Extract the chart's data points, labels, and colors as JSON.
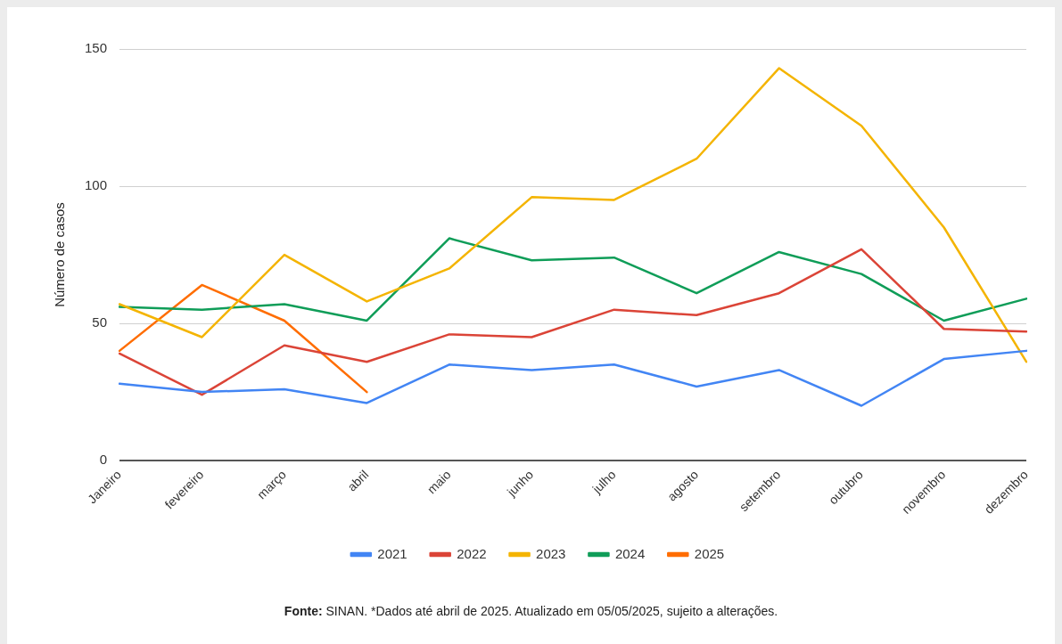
{
  "chart_data": {
    "type": "line",
    "ylabel": "Número de casos",
    "categories": [
      "Janeiro",
      "fevereiro",
      "março",
      "abril",
      "maio",
      "junho",
      "julho",
      "agosto",
      "setembro",
      "outubro",
      "novembro",
      "dezembro"
    ],
    "series": [
      {
        "name": "2021",
        "color": "#4285f4",
        "values": [
          28,
          25,
          26,
          21,
          35,
          33,
          35,
          27,
          33,
          20,
          37,
          40
        ]
      },
      {
        "name": "2022",
        "color": "#db4437",
        "values": [
          39,
          24,
          42,
          36,
          46,
          45,
          55,
          53,
          61,
          77,
          48,
          47
        ]
      },
      {
        "name": "2023",
        "color": "#f4b400",
        "values": [
          57,
          45,
          75,
          58,
          70,
          96,
          95,
          110,
          143,
          122,
          85,
          36
        ]
      },
      {
        "name": "2024",
        "color": "#0f9d58",
        "values": [
          56,
          55,
          57,
          51,
          81,
          73,
          74,
          61,
          76,
          68,
          51,
          59
        ]
      },
      {
        "name": "2025",
        "color": "#ff6d01",
        "values": [
          40,
          64,
          51,
          25,
          null,
          null,
          null,
          null,
          null,
          null,
          null,
          null
        ]
      }
    ],
    "ylim": [
      0,
      150
    ],
    "yticks": [
      0,
      50,
      100,
      150
    ],
    "grid": "y",
    "legend": "bottom",
    "marker": "none",
    "line_style": "solid",
    "annotations": [
      "Fonte: SINAN. *Dados até abril de 2025. Atualizado em 05/05/2025, sujeito a alterações."
    ]
  }
}
